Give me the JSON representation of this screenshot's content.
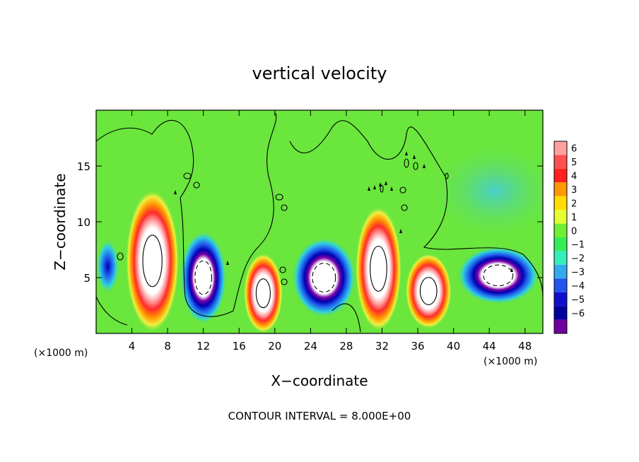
{
  "chart_data": {
    "type": "heatmap",
    "title": "vertical velocity",
    "xlabel": "X−coordinate",
    "ylabel": "Z−coordinate",
    "x_unit_left": "(×1000 m)",
    "x_unit_right": "(×1000 m)",
    "xlim": [
      0,
      50
    ],
    "ylim": [
      0,
      20
    ],
    "xticks": [
      4,
      8,
      12,
      16,
      20,
      24,
      28,
      32,
      36,
      40,
      44,
      48
    ],
    "yticks": [
      5,
      10,
      15
    ],
    "footer": "CONTOUR INTERVAL = 8.000E+00",
    "colorbar": {
      "levels": [
        6,
        5,
        4,
        3,
        2,
        1,
        0,
        -1,
        -2,
        -3,
        -4,
        -5,
        -6
      ],
      "labels": [
        "6",
        "5",
        "4",
        "3",
        "2",
        "1",
        "0",
        "−1",
        "−2",
        "−3",
        "−4",
        "−5",
        "−6"
      ],
      "colors": [
        "#ffa0a0",
        "#ff5050",
        "#ff2020",
        "#ff9900",
        "#ffdd00",
        "#e6ff33",
        "#70ee33",
        "#33ee55",
        "#33eebb",
        "#33aaee",
        "#2255ee",
        "#1010cc",
        "#0000a0",
        "#7000a0"
      ]
    },
    "background_color": "#6ae63d",
    "features": [
      {
        "kind": "updraft",
        "x": 6.3,
        "z": 6.5,
        "rx": 3.0,
        "rz": 6.4,
        "core_contour": "solid"
      },
      {
        "kind": "downdraft",
        "x": 12.0,
        "z": 5.0,
        "rx": 2.6,
        "rz": 4.2,
        "core_contour": "dashed"
      },
      {
        "kind": "updraft",
        "x": 18.7,
        "z": 3.6,
        "rx": 2.2,
        "rz": 3.6,
        "core_contour": "solid"
      },
      {
        "kind": "downdraft",
        "x": 25.5,
        "z": 5.0,
        "rx": 3.6,
        "rz": 3.6,
        "core_contour": "dashed"
      },
      {
        "kind": "updraft",
        "x": 31.6,
        "z": 5.8,
        "rx": 2.6,
        "rz": 5.6,
        "core_contour": "solid"
      },
      {
        "kind": "updraft",
        "x": 37.2,
        "z": 3.8,
        "rx": 2.6,
        "rz": 3.4,
        "core_contour": "solid"
      },
      {
        "kind": "downdraft",
        "x": 45.0,
        "z": 5.2,
        "rx": 4.6,
        "rz": 2.6,
        "core_contour": "dashed"
      },
      {
        "kind": "downdraft",
        "x": 1.3,
        "z": 6.0,
        "rx": 1.3,
        "rz": 2.5,
        "core_contour": "none"
      }
    ],
    "grid": false,
    "legend": "colorbar-right"
  }
}
